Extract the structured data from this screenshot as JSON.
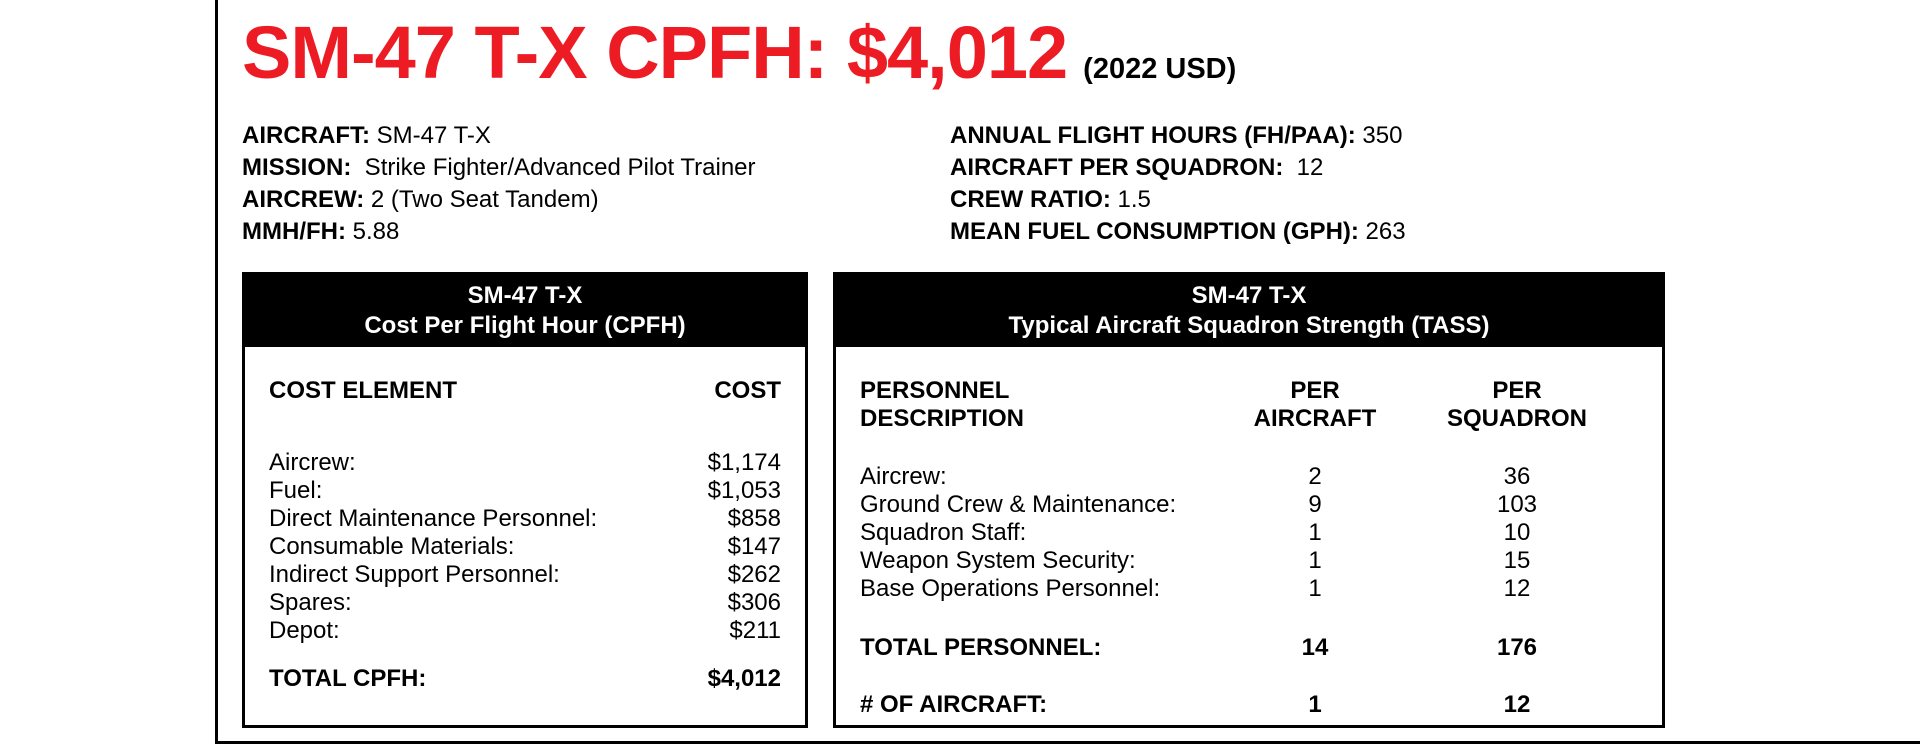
{
  "page": {
    "title": "SM-47 T-X CPFH: $4,012",
    "title_suffix": "(2022 USD)",
    "accent_color": "#ED1C24"
  },
  "specs": {
    "left": [
      {
        "label": "AIRCRAFT:",
        "value": " SM-47 T-X"
      },
      {
        "label": "MISSION:",
        "value": "  Strike Fighter/Advanced Pilot Trainer"
      },
      {
        "label": "AIRCREW:",
        "value": " 2 (Two Seat Tandem)"
      },
      {
        "label": "MMH/FH:",
        "value": " 5.88"
      }
    ],
    "right": [
      {
        "label": "ANNUAL FLIGHT HOURS (FH/PAA):",
        "value": " 350"
      },
      {
        "label": "AIRCRAFT PER SQUADRON:",
        "value": "  12"
      },
      {
        "label": "CREW RATIO:",
        "value": " 1.5"
      },
      {
        "label": "MEAN FUEL CONSUMPTION (GPH):",
        "value": " 263"
      }
    ]
  },
  "cpfh_table": {
    "header_line1": "SM-47 T-X",
    "header_line2": "Cost Per Flight Hour (CPFH)",
    "col_element": "COST ELEMENT",
    "col_cost": "COST",
    "rows": [
      {
        "element": "Aircrew:",
        "cost": "$1,174"
      },
      {
        "element": "Fuel:",
        "cost": "$1,053"
      },
      {
        "element": "Direct Maintenance Personnel:",
        "cost": "$858"
      },
      {
        "element": "Consumable Materials:",
        "cost": "$147"
      },
      {
        "element": "Indirect Support Personnel:",
        "cost": "$262"
      },
      {
        "element": "Spares:",
        "cost": "$306"
      },
      {
        "element": "Depot:",
        "cost": "$211"
      }
    ],
    "total_label": "TOTAL CPFH:",
    "total_value": "$4,012"
  },
  "tass_table": {
    "header_line1": "SM-47 T-X",
    "header_line2": "Typical Aircraft Squadron Strength (TASS)",
    "col_desc_line1": "PERSONNEL",
    "col_desc_line2": "DESCRIPTION",
    "col_pa_line1": "PER",
    "col_pa_line2": "AIRCRAFT",
    "col_ps_line1": "PER",
    "col_ps_line2": "SQUADRON",
    "rows": [
      {
        "description": "Aircrew:",
        "per_aircraft": "2",
        "per_squadron": "36"
      },
      {
        "description": "Ground Crew & Maintenance:",
        "per_aircraft": "9",
        "per_squadron": "103"
      },
      {
        "description": "Squadron Staff:",
        "per_aircraft": "1",
        "per_squadron": "10"
      },
      {
        "description": "Weapon System Security:",
        "per_aircraft": "1",
        "per_squadron": "15"
      },
      {
        "description": "Base Operations Personnel:",
        "per_aircraft": "1",
        "per_squadron": "12"
      }
    ],
    "total_label": "TOTAL PERSONNEL:",
    "total_per_aircraft": "14",
    "total_per_squadron": "176",
    "aircraft_label": "# OF AIRCRAFT:",
    "aircraft_per_aircraft": "1",
    "aircraft_per_squadron": "12"
  }
}
